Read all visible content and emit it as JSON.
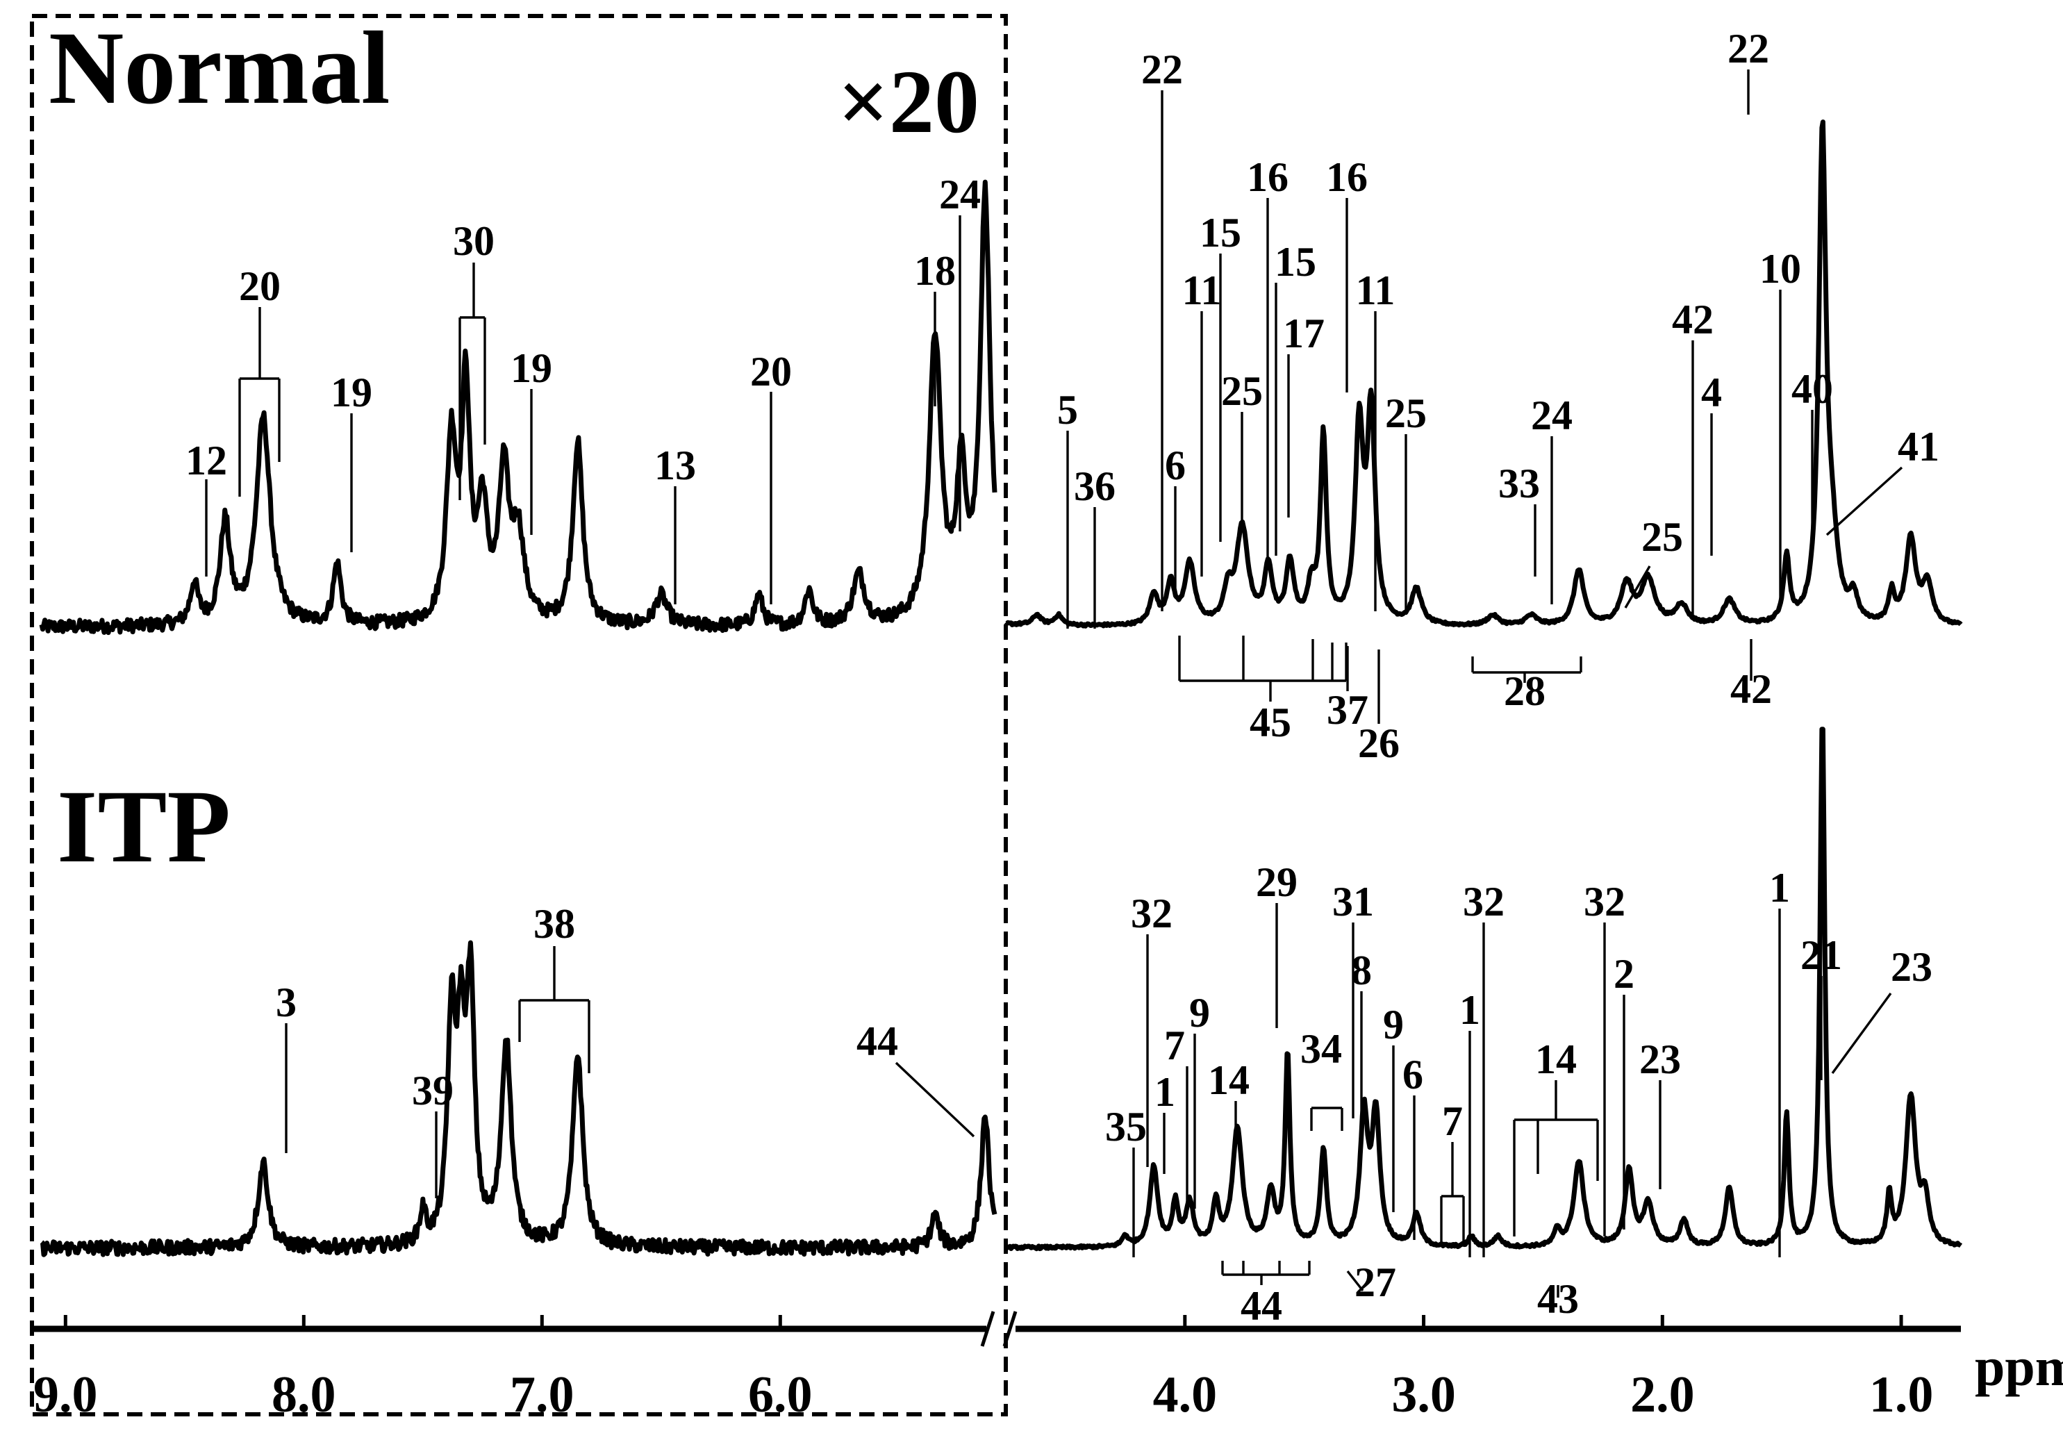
{
  "chart_data": {
    "type": "line",
    "title": "",
    "xlabel": "",
    "ylabel": "",
    "x_unit": "ppm",
    "x_reversed": true,
    "xlim": [
      9.1,
      0.75
    ],
    "axis_break_between": [
      5.1,
      4.75
    ],
    "tick_labels": [
      "9.0",
      "8.0",
      "7.0",
      "6.0",
      "4.0",
      "3.0",
      "2.0",
      "1.0"
    ],
    "tick_values": [
      9.0,
      8.0,
      7.0,
      6.0,
      4.0,
      3.0,
      2.0,
      1.0
    ],
    "scale_annotation": "×20",
    "scale_region_ppm": [
      9.1,
      5.1
    ],
    "y_scale": "relative intensity (arbitrary units, 0–100)",
    "series": [
      {
        "name": "Normal",
        "baseline": 3,
        "noise": true,
        "peaks": [
          {
            "ppm": 8.46,
            "h": 8,
            "w": 0.02
          },
          {
            "ppm": 8.33,
            "h": 20,
            "w": 0.025
          },
          {
            "ppm": 8.17,
            "h": 41,
            "w": 0.035
          },
          {
            "ppm": 7.86,
            "h": 12,
            "w": 0.02
          },
          {
            "ppm": 7.38,
            "h": 36,
            "w": 0.025
          },
          {
            "ppm": 7.32,
            "h": 45,
            "w": 0.02
          },
          {
            "ppm": 7.25,
            "h": 22,
            "w": 0.025
          },
          {
            "ppm": 7.16,
            "h": 29,
            "w": 0.025
          },
          {
            "ppm": 7.1,
            "h": 17,
            "w": 0.03
          },
          {
            "ppm": 6.85,
            "h": 36,
            "w": 0.025
          },
          {
            "ppm": 6.5,
            "h": 6,
            "w": 0.03
          },
          {
            "ppm": 6.09,
            "h": 6,
            "w": 0.02
          },
          {
            "ppm": 5.88,
            "h": 7,
            "w": 0.02
          },
          {
            "ppm": 5.67,
            "h": 10,
            "w": 0.03
          },
          {
            "ppm": 5.35,
            "h": 56,
            "w": 0.03
          },
          {
            "ppm": 5.24,
            "h": 28,
            "w": 0.025
          },
          {
            "ppm": 5.14,
            "h": 84,
            "w": 0.025
          },
          {
            "ppm": 4.62,
            "h": 2,
            "w": 0.02
          },
          {
            "ppm": 4.53,
            "h": 2,
            "w": 0.02
          },
          {
            "ppm": 4.13,
            "h": 6,
            "w": 0.02
          },
          {
            "ppm": 4.06,
            "h": 8,
            "w": 0.02
          },
          {
            "ppm": 3.98,
            "h": 12,
            "w": 0.025
          },
          {
            "ppm": 3.82,
            "h": 6,
            "w": 0.02
          },
          {
            "ppm": 3.76,
            "h": 19,
            "w": 0.03
          },
          {
            "ppm": 3.65,
            "h": 11,
            "w": 0.02
          },
          {
            "ppm": 3.56,
            "h": 12,
            "w": 0.02
          },
          {
            "ppm": 3.47,
            "h": 7,
            "w": 0.02
          },
          {
            "ppm": 3.42,
            "h": 37,
            "w": 0.015
          },
          {
            "ppm": 3.27,
            "h": 38,
            "w": 0.02
          },
          {
            "ppm": 3.22,
            "h": 41,
            "w": 0.02
          },
          {
            "ppm": 3.03,
            "h": 7,
            "w": 0.025
          },
          {
            "ppm": 2.71,
            "h": 2,
            "w": 0.03
          },
          {
            "ppm": 2.55,
            "h": 2,
            "w": 0.03
          },
          {
            "ppm": 2.35,
            "h": 11,
            "w": 0.025
          },
          {
            "ppm": 2.15,
            "h": 8,
            "w": 0.03
          },
          {
            "ppm": 2.06,
            "h": 9,
            "w": 0.035
          },
          {
            "ppm": 1.92,
            "h": 4,
            "w": 0.03
          },
          {
            "ppm": 1.72,
            "h": 5,
            "w": 0.03
          },
          {
            "ppm": 1.48,
            "h": 13,
            "w": 0.015
          },
          {
            "ppm": 1.33,
            "h": 95,
            "w": 0.018
          },
          {
            "ppm": 1.29,
            "h": 14,
            "w": 0.03
          },
          {
            "ppm": 1.2,
            "h": 5,
            "w": 0.02
          },
          {
            "ppm": 1.04,
            "h": 6,
            "w": 0.015
          },
          {
            "ppm": 0.96,
            "h": 17,
            "w": 0.025
          },
          {
            "ppm": 0.89,
            "h": 8,
            "w": 0.025
          }
        ]
      },
      {
        "name": "ITP",
        "baseline": 3,
        "noise": true,
        "peaks": [
          {
            "ppm": 8.17,
            "h": 16,
            "w": 0.025
          },
          {
            "ppm": 7.5,
            "h": 6,
            "w": 0.015
          },
          {
            "ppm": 7.38,
            "h": 40,
            "w": 0.02
          },
          {
            "ppm": 7.34,
            "h": 34,
            "w": 0.02
          },
          {
            "ppm": 7.3,
            "h": 46,
            "w": 0.02
          },
          {
            "ppm": 7.15,
            "h": 38,
            "w": 0.025
          },
          {
            "ppm": 6.85,
            "h": 36,
            "w": 0.025
          },
          {
            "ppm": 5.35,
            "h": 6,
            "w": 0.02
          },
          {
            "ppm": 5.14,
            "h": 25,
            "w": 0.02
          },
          {
            "ppm": 4.25,
            "h": 2,
            "w": 0.015
          },
          {
            "ppm": 4.13,
            "h": 15,
            "w": 0.02
          },
          {
            "ppm": 4.04,
            "h": 8,
            "w": 0.015
          },
          {
            "ppm": 3.98,
            "h": 8,
            "w": 0.02
          },
          {
            "ppm": 3.87,
            "h": 8,
            "w": 0.015
          },
          {
            "ppm": 3.78,
            "h": 22,
            "w": 0.025
          },
          {
            "ppm": 3.64,
            "h": 10,
            "w": 0.02
          },
          {
            "ppm": 3.57,
            "h": 36,
            "w": 0.012
          },
          {
            "ppm": 3.42,
            "h": 18,
            "w": 0.015
          },
          {
            "ppm": 3.25,
            "h": 24,
            "w": 0.02
          },
          {
            "ppm": 3.2,
            "h": 24,
            "w": 0.02
          },
          {
            "ppm": 3.03,
            "h": 6,
            "w": 0.02
          },
          {
            "ppm": 2.8,
            "h": 2,
            "w": 0.015
          },
          {
            "ppm": 2.69,
            "h": 2,
            "w": 0.02
          },
          {
            "ppm": 2.44,
            "h": 3,
            "w": 0.015
          },
          {
            "ppm": 2.35,
            "h": 16,
            "w": 0.025
          },
          {
            "ppm": 2.14,
            "h": 14,
            "w": 0.02
          },
          {
            "ppm": 2.06,
            "h": 8,
            "w": 0.025
          },
          {
            "ppm": 1.91,
            "h": 5,
            "w": 0.02
          },
          {
            "ppm": 1.72,
            "h": 11,
            "w": 0.02
          },
          {
            "ppm": 1.48,
            "h": 25,
            "w": 0.012
          },
          {
            "ppm": 1.33,
            "h": 100,
            "w": 0.012
          },
          {
            "ppm": 1.05,
            "h": 9,
            "w": 0.012
          },
          {
            "ppm": 0.96,
            "h": 28,
            "w": 0.025
          },
          {
            "ppm": 0.9,
            "h": 8,
            "w": 0.02
          }
        ]
      }
    ],
    "annotations": {
      "normal": [
        {
          "text": "12",
          "ppm": 8.46
        },
        {
          "text": "20",
          "ppm": 8.25
        },
        {
          "text": "19",
          "ppm": 7.86
        },
        {
          "text": "30",
          "ppm": 7.35
        },
        {
          "text": "19",
          "ppm": 7.1
        },
        {
          "text": "13",
          "ppm": 6.5
        },
        {
          "text": "20",
          "ppm": 6.09
        },
        {
          "text": "18",
          "ppm": 5.35
        },
        {
          "text": "24",
          "ppm": 5.24
        },
        {
          "text": "22",
          "ppm": 4.13
        },
        {
          "text": "5",
          "ppm": 4.62
        },
        {
          "text": "36",
          "ppm": 4.53
        },
        {
          "text": "6",
          "ppm": 4.06
        },
        {
          "text": "11",
          "ppm": 3.94
        },
        {
          "text": "15",
          "ppm": 3.85
        },
        {
          "text": "25",
          "ppm": 3.78
        },
        {
          "text": "16",
          "ppm": 3.62
        },
        {
          "text": "15",
          "ppm": 3.56
        },
        {
          "text": "17",
          "ppm": 3.54
        },
        {
          "text": "16",
          "ppm": 3.24
        },
        {
          "text": "11",
          "ppm": 3.1
        },
        {
          "text": "25",
          "ppm": 2.98
        },
        {
          "text": "33",
          "ppm": 2.35
        },
        {
          "text": "24",
          "ppm": 2.27
        },
        {
          "text": "25",
          "ppm": 1.72
        },
        {
          "text": "42",
          "ppm": 1.6
        },
        {
          "text": "4",
          "ppm": 1.48
        },
        {
          "text": "22",
          "ppm": 1.33
        },
        {
          "text": "10",
          "ppm": 1.17
        },
        {
          "text": "40",
          "ppm": 1.0
        },
        {
          "text": "41",
          "ppm": 0.97
        },
        {
          "text": "45",
          "ppm": 3.6
        },
        {
          "text": "37",
          "ppm": 3.22
        },
        {
          "text": "26",
          "ppm": 3.1
        },
        {
          "text": "28",
          "ppm": 2.4
        },
        {
          "text": "42",
          "ppm": 1.3
        }
      ],
      "itp": [
        {
          "text": "3",
          "ppm": 8.17
        },
        {
          "text": "39",
          "ppm": 7.5
        },
        {
          "text": "38",
          "ppm": 7.0
        },
        {
          "text": "44",
          "ppm": 5.14
        },
        {
          "text": "35",
          "ppm": 4.25
        },
        {
          "text": "32",
          "ppm": 4.18
        },
        {
          "text": "1",
          "ppm": 4.11
        },
        {
          "text": "7",
          "ppm": 3.99
        },
        {
          "text": "9",
          "ppm": 3.94
        },
        {
          "text": "14",
          "ppm": 3.78
        },
        {
          "text": "29",
          "ppm": 3.57
        },
        {
          "text": "34",
          "ppm": 3.3
        },
        {
          "text": "31",
          "ppm": 3.22
        },
        {
          "text": "8",
          "ppm": 3.18
        },
        {
          "text": "9",
          "ppm": 3.03
        },
        {
          "text": "6",
          "ppm": 2.93
        },
        {
          "text": "7",
          "ppm": 2.76
        },
        {
          "text": "1",
          "ppm": 2.68
        },
        {
          "text": "32",
          "ppm": 2.57
        },
        {
          "text": "14",
          "ppm": 2.25
        },
        {
          "text": "32",
          "ppm": 2.01
        },
        {
          "text": "2",
          "ppm": 1.9
        },
        {
          "text": "23",
          "ppm": 1.72
        },
        {
          "text": "1",
          "ppm": 1.17
        },
        {
          "text": "21",
          "ppm": 0.98
        },
        {
          "text": "23",
          "ppm": 0.97
        },
        {
          "text": "44",
          "ppm": 3.6
        },
        {
          "text": "27",
          "ppm": 3.3
        },
        {
          "text": "43",
          "ppm": 2.2
        }
      ]
    }
  },
  "panels": {
    "normal_title": "Normal",
    "itp_title": "ITP",
    "scale_label": "×20",
    "unit": "ppm"
  }
}
